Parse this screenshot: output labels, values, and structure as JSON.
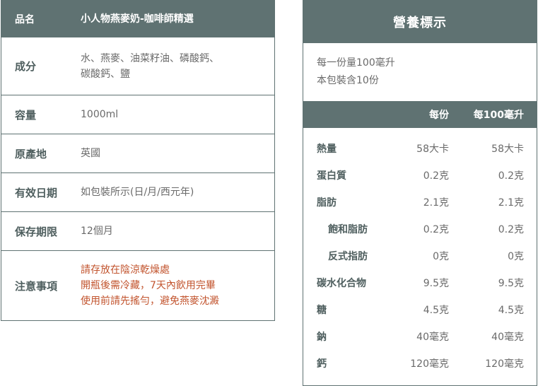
{
  "product": {
    "header": {
      "key": "品名",
      "value": "小人物燕麥奶-咖啡師精選"
    },
    "rows": [
      {
        "key": "成分",
        "lines": [
          "水、燕麥、油菜籽油、磷酸鈣、",
          "碳酸鈣、鹽"
        ]
      },
      {
        "key": "容量",
        "lines": [
          "1000ml"
        ]
      },
      {
        "key": "原產地",
        "lines": [
          "英國"
        ]
      },
      {
        "key": "有效日期",
        "lines": [
          "如包裝所示(日/月/西元年)"
        ]
      },
      {
        "key": "保存期限",
        "lines": [
          "12個月"
        ]
      },
      {
        "key": "注意事項",
        "lines": [
          "請存放在陰涼乾燥處",
          "開瓶後需冷藏，7天內飲用完畢",
          "使用前請先搖勻，避免燕麥沈澱"
        ]
      }
    ],
    "colors": {
      "header_bg": "#5f7272",
      "warning_text": "#c2542e"
    }
  },
  "nutrition": {
    "title": "營養標示",
    "serving_size": "每一份量100毫升",
    "servings_per_pack": "本包裝含10份",
    "col_per_serving": "每份",
    "col_per_100": "每100毫升",
    "rows": [
      {
        "name": "熱量",
        "per": "58大卡",
        "per100": "58大卡"
      },
      {
        "name": "蛋白質",
        "per": "0.2克",
        "per100": "0.2克"
      },
      {
        "name": "脂肪",
        "per": "2.1克",
        "per100": "2.1克"
      },
      {
        "name": "飽和脂肪",
        "per": "0.2克",
        "per100": "0.2克"
      },
      {
        "name": "反式指肪",
        "per": "0克",
        "per100": "0克"
      },
      {
        "name": "碳水化合物",
        "per": "9.5克",
        "per100": "9.5克"
      },
      {
        "name": "糖",
        "per": "4.5克",
        "per100": "4.5克"
      },
      {
        "name": "鈉",
        "per": "40毫克",
        "per100": "40毫克"
      },
      {
        "name": "鈣",
        "per": "120毫克",
        "per100": "120毫克"
      }
    ]
  }
}
